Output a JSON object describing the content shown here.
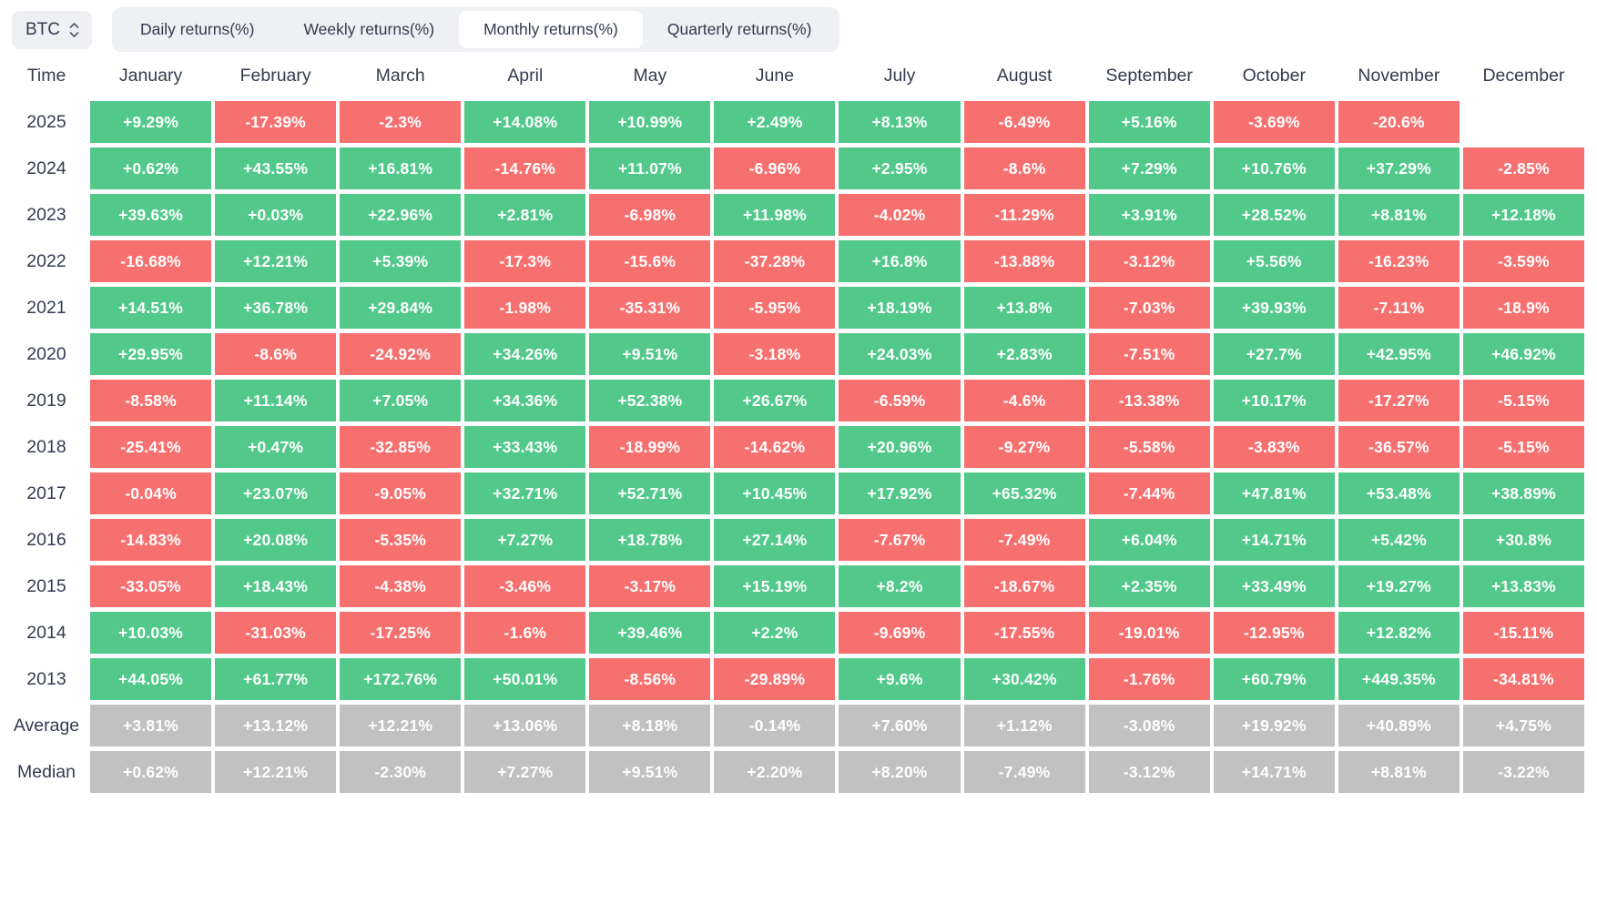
{
  "symbol_select": {
    "value": "BTC"
  },
  "tabs": [
    {
      "label": "Daily returns(%)",
      "active": false
    },
    {
      "label": "Weekly returns(%)",
      "active": false
    },
    {
      "label": "Monthly returns(%)",
      "active": true
    },
    {
      "label": "Quarterly returns(%)",
      "active": false
    }
  ],
  "colors": {
    "positive": "#52c98b",
    "negative": "#f77070",
    "summary": "#c1c1c1",
    "control_bg": "#eef0f3",
    "text_dark": "#333b4f",
    "cell_text": "#ffffff"
  },
  "table": {
    "columns": [
      "Time",
      "January",
      "February",
      "March",
      "April",
      "May",
      "June",
      "July",
      "August",
      "September",
      "October",
      "November",
      "December"
    ],
    "rows": [
      {
        "label": "2025",
        "type": "year",
        "cells": [
          "+9.29%",
          "-17.39%",
          "-2.3%",
          "+14.08%",
          "+10.99%",
          "+2.49%",
          "+8.13%",
          "-6.49%",
          "+5.16%",
          "-3.69%",
          "-20.6%",
          null
        ]
      },
      {
        "label": "2024",
        "type": "year",
        "cells": [
          "+0.62%",
          "+43.55%",
          "+16.81%",
          "-14.76%",
          "+11.07%",
          "-6.96%",
          "+2.95%",
          "-8.6%",
          "+7.29%",
          "+10.76%",
          "+37.29%",
          "-2.85%"
        ]
      },
      {
        "label": "2023",
        "type": "year",
        "cells": [
          "+39.63%",
          "+0.03%",
          "+22.96%",
          "+2.81%",
          "-6.98%",
          "+11.98%",
          "-4.02%",
          "-11.29%",
          "+3.91%",
          "+28.52%",
          "+8.81%",
          "+12.18%"
        ]
      },
      {
        "label": "2022",
        "type": "year",
        "cells": [
          "-16.68%",
          "+12.21%",
          "+5.39%",
          "-17.3%",
          "-15.6%",
          "-37.28%",
          "+16.8%",
          "-13.88%",
          "-3.12%",
          "+5.56%",
          "-16.23%",
          "-3.59%"
        ]
      },
      {
        "label": "2021",
        "type": "year",
        "cells": [
          "+14.51%",
          "+36.78%",
          "+29.84%",
          "-1.98%",
          "-35.31%",
          "-5.95%",
          "+18.19%",
          "+13.8%",
          "-7.03%",
          "+39.93%",
          "-7.11%",
          "-18.9%"
        ]
      },
      {
        "label": "2020",
        "type": "year",
        "cells": [
          "+29.95%",
          "-8.6%",
          "-24.92%",
          "+34.26%",
          "+9.51%",
          "-3.18%",
          "+24.03%",
          "+2.83%",
          "-7.51%",
          "+27.7%",
          "+42.95%",
          "+46.92%"
        ]
      },
      {
        "label": "2019",
        "type": "year",
        "cells": [
          "-8.58%",
          "+11.14%",
          "+7.05%",
          "+34.36%",
          "+52.38%",
          "+26.67%",
          "-6.59%",
          "-4.6%",
          "-13.38%",
          "+10.17%",
          "-17.27%",
          "-5.15%"
        ]
      },
      {
        "label": "2018",
        "type": "year",
        "cells": [
          "-25.41%",
          "+0.47%",
          "-32.85%",
          "+33.43%",
          "-18.99%",
          "-14.62%",
          "+20.96%",
          "-9.27%",
          "-5.58%",
          "-3.83%",
          "-36.57%",
          "-5.15%"
        ]
      },
      {
        "label": "2017",
        "type": "year",
        "cells": [
          "-0.04%",
          "+23.07%",
          "-9.05%",
          "+32.71%",
          "+52.71%",
          "+10.45%",
          "+17.92%",
          "+65.32%",
          "-7.44%",
          "+47.81%",
          "+53.48%",
          "+38.89%"
        ]
      },
      {
        "label": "2016",
        "type": "year",
        "cells": [
          "-14.83%",
          "+20.08%",
          "-5.35%",
          "+7.27%",
          "+18.78%",
          "+27.14%",
          "-7.67%",
          "-7.49%",
          "+6.04%",
          "+14.71%",
          "+5.42%",
          "+30.8%"
        ]
      },
      {
        "label": "2015",
        "type": "year",
        "cells": [
          "-33.05%",
          "+18.43%",
          "-4.38%",
          "-3.46%",
          "-3.17%",
          "+15.19%",
          "+8.2%",
          "-18.67%",
          "+2.35%",
          "+33.49%",
          "+19.27%",
          "+13.83%"
        ]
      },
      {
        "label": "2014",
        "type": "year",
        "cells": [
          "+10.03%",
          "-31.03%",
          "-17.25%",
          "-1.6%",
          "+39.46%",
          "+2.2%",
          "-9.69%",
          "-17.55%",
          "-19.01%",
          "-12.95%",
          "+12.82%",
          "-15.11%"
        ]
      },
      {
        "label": "2013",
        "type": "year",
        "cells": [
          "+44.05%",
          "+61.77%",
          "+172.76%",
          "+50.01%",
          "-8.56%",
          "-29.89%",
          "+9.6%",
          "+30.42%",
          "-1.76%",
          "+60.79%",
          "+449.35%",
          "-34.81%"
        ]
      },
      {
        "label": "Average",
        "type": "summary",
        "cells": [
          "+3.81%",
          "+13.12%",
          "+12.21%",
          "+13.06%",
          "+8.18%",
          "-0.14%",
          "+7.60%",
          "+1.12%",
          "-3.08%",
          "+19.92%",
          "+40.89%",
          "+4.75%"
        ]
      },
      {
        "label": "Median",
        "type": "summary",
        "cells": [
          "+0.62%",
          "+12.21%",
          "-2.30%",
          "+7.27%",
          "+9.51%",
          "+2.20%",
          "+8.20%",
          "-7.49%",
          "-3.12%",
          "+14.71%",
          "+8.81%",
          "-3.22%"
        ]
      }
    ]
  }
}
